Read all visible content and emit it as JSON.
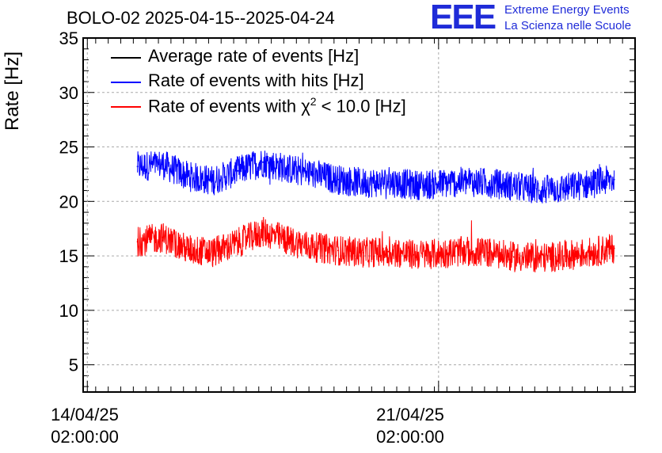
{
  "chart_data": {
    "type": "line",
    "title": "BOLO-02 2025-04-15--2025-04-24",
    "ylabel": "Rate [Hz]",
    "xlabel": "",
    "ylim": [
      2.5,
      35
    ],
    "xlim": [
      "2025-04-14 00:00",
      "2025-04-25 00:00"
    ],
    "yticks": [
      5,
      10,
      15,
      20,
      25,
      30,
      35
    ],
    "xticks": [
      {
        "date": "2025-04-14 02:00",
        "line1": "14/04/25",
        "line2": "02:00:00"
      },
      {
        "date": "2025-04-21 02:00",
        "line1": "21/04/25",
        "line2": "02:00:00"
      }
    ],
    "grid": true,
    "legend_position": "top-left",
    "series": [
      {
        "name": "Average rate of events [Hz]",
        "color": "#000000",
        "x": [],
        "values": []
      },
      {
        "name": "Rate of events with hits [Hz]",
        "color": "#0000ff",
        "x": [
          "2025-04-15 02:00",
          "2025-04-15 14:00",
          "2025-04-16 02:00",
          "2025-04-16 14:00",
          "2025-04-17 02:00",
          "2025-04-17 14:00",
          "2025-04-18 02:00",
          "2025-04-18 14:00",
          "2025-04-19 02:00",
          "2025-04-19 14:00",
          "2025-04-20 02:00",
          "2025-04-20 14:00",
          "2025-04-21 02:00",
          "2025-04-21 14:00",
          "2025-04-22 02:00",
          "2025-04-22 14:00",
          "2025-04-23 02:00",
          "2025-04-23 14:00",
          "2025-04-24 02:00",
          "2025-04-24 14:00"
        ],
        "values": [
          23.2,
          23.4,
          22.3,
          21.9,
          22.8,
          23.6,
          23.0,
          22.5,
          22.0,
          21.7,
          21.8,
          21.5,
          21.6,
          21.8,
          21.7,
          21.4,
          21.0,
          21.2,
          21.6,
          22.0
        ]
      },
      {
        "name": "Rate of events with χ² < 10.0 [Hz]",
        "color": "#ff0000",
        "x": [
          "2025-04-15 02:00",
          "2025-04-15 14:00",
          "2025-04-16 02:00",
          "2025-04-16 14:00",
          "2025-04-17 02:00",
          "2025-04-17 14:00",
          "2025-04-18 02:00",
          "2025-04-18 14:00",
          "2025-04-19 02:00",
          "2025-04-19 14:00",
          "2025-04-20 02:00",
          "2025-04-20 14:00",
          "2025-04-21 02:00",
          "2025-04-21 14:00",
          "2025-04-22 02:00",
          "2025-04-22 14:00",
          "2025-04-23 02:00",
          "2025-04-23 14:00",
          "2025-04-24 02:00",
          "2025-04-24 14:00"
        ],
        "values": [
          16.3,
          16.7,
          15.6,
          15.3,
          16.2,
          17.2,
          16.4,
          15.8,
          15.5,
          15.3,
          15.4,
          15.1,
          15.2,
          15.4,
          15.3,
          14.9,
          14.8,
          15.0,
          15.3,
          15.7
        ]
      }
    ]
  },
  "logo": {
    "mark": "EEE",
    "line1": "Extreme Energy Events",
    "line2": "La Scienza nelle Scuole"
  },
  "legend": {
    "avg": "Average rate of events [Hz]",
    "hits": "Rate of events with hits [Hz]",
    "chi_prefix": "Rate of events with χ",
    "chi_sup": "2",
    "chi_suffix": " < 10.0 [Hz]"
  }
}
